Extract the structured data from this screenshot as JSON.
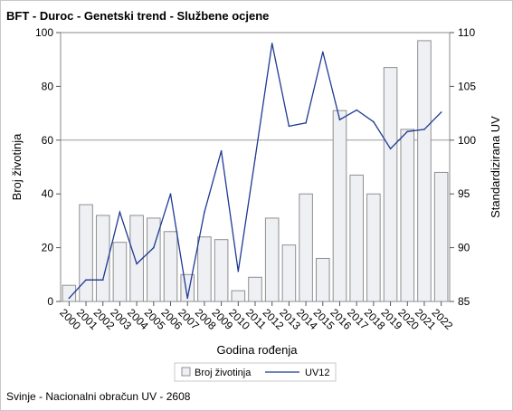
{
  "title": "BFT - Duroc - Genetski trend - Službene ocjene",
  "footnote": "Svinje - Nacionalni obračun UV - 2608",
  "chart_data": {
    "type": "bar",
    "categories": [
      "2000",
      "2001",
      "2002",
      "2003",
      "2004",
      "2005",
      "2006",
      "2007",
      "2008",
      "2009",
      "2010",
      "2011",
      "2012",
      "2013",
      "2014",
      "2015",
      "2016",
      "2017",
      "2018",
      "2019",
      "2020",
      "2021",
      "2022"
    ],
    "series": [
      {
        "name": "Broj životinja",
        "type": "bar",
        "axis": "left",
        "values": [
          6,
          36,
          32,
          22,
          32,
          31,
          26,
          10,
          24,
          23,
          4,
          9,
          31,
          21,
          40,
          16,
          71,
          47,
          40,
          87,
          64,
          97,
          48
        ]
      },
      {
        "name": "UV12",
        "type": "line",
        "axis": "right",
        "values": [
          85.3,
          87.0,
          87.0,
          93.3,
          88.5,
          90.0,
          95.0,
          85.3,
          93.3,
          99.0,
          87.8,
          98.3,
          109.0,
          101.3,
          101.6,
          108.2,
          101.9,
          102.8,
          101.7,
          99.2,
          100.8,
          101.0,
          102.6
        ]
      }
    ],
    "xlabel": "Godina rođenja",
    "ylabel": "Broj životinja",
    "y2label": "Standardizirana UV",
    "ylim": [
      0,
      100
    ],
    "y2lim": [
      85,
      110
    ],
    "yticks": [
      0,
      20,
      40,
      60,
      80,
      100
    ],
    "y2ticks": [
      85,
      90,
      95,
      100,
      105,
      110
    ],
    "reference_line_y2": 100,
    "legend_position": "bottom",
    "colors": {
      "bar_fill": "#eef0f4",
      "bar_stroke": "#8f8f8f",
      "line": "#1f3a93",
      "ref": "#9a9a9a"
    }
  }
}
